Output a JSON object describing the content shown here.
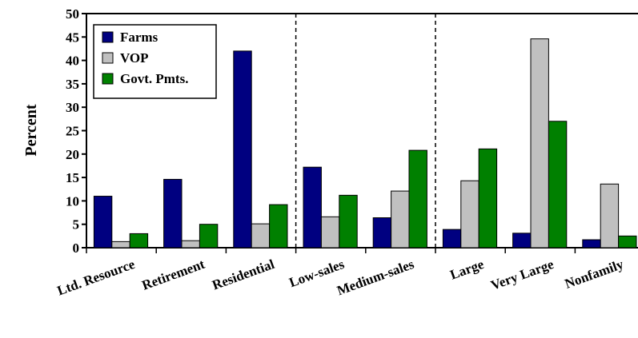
{
  "chart_data": {
    "type": "bar",
    "ylabel": "Percent",
    "xlabel": "",
    "title": "",
    "ylim": [
      0,
      50
    ],
    "yticks": [
      0,
      5,
      10,
      15,
      20,
      25,
      30,
      35,
      40,
      45,
      50
    ],
    "categories": [
      "Ltd. Resource",
      "Retirement",
      "Residential",
      "Low-sales",
      "Medium-sales",
      "Large",
      "Very Large",
      "Nonfamily"
    ],
    "separators_after_categories": [
      "Residential",
      "Medium-sales"
    ],
    "legend_position": "top-left",
    "grid": false,
    "series": [
      {
        "name": "Farms",
        "color": "#000080",
        "values": [
          11.0,
          14.6,
          42.0,
          17.2,
          6.4,
          3.9,
          3.1,
          1.7
        ]
      },
      {
        "name": "VOP",
        "color": "#c0c0c0",
        "values": [
          1.3,
          1.5,
          5.1,
          6.6,
          12.1,
          14.3,
          44.6,
          13.6
        ]
      },
      {
        "name": "Govt. Pmts.",
        "color": "#008000",
        "values": [
          3.0,
          5.0,
          9.2,
          11.2,
          20.8,
          21.1,
          27.0,
          2.5
        ]
      }
    ]
  }
}
